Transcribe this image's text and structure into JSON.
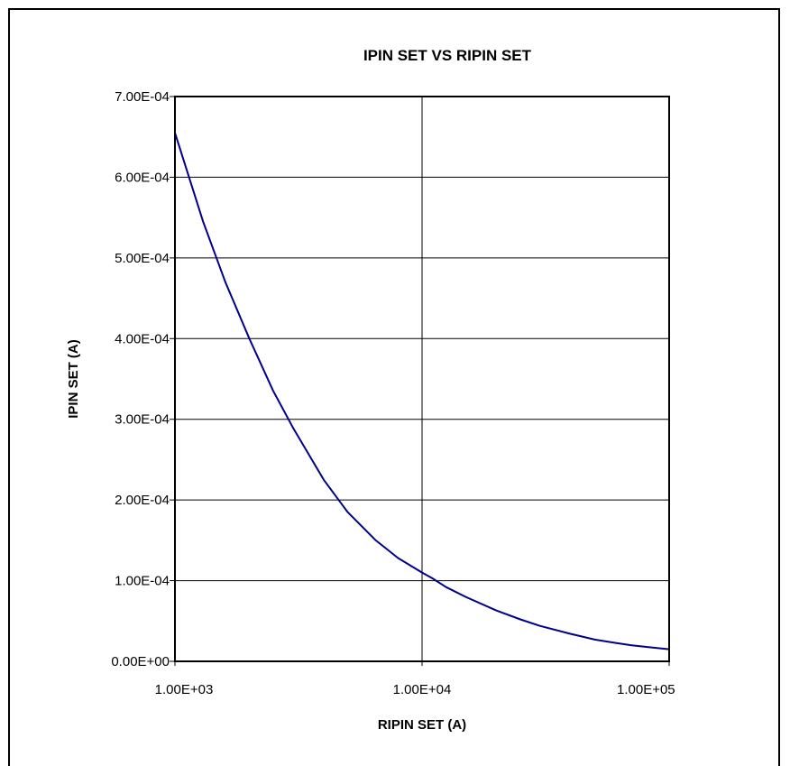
{
  "chart_data": {
    "type": "line",
    "title": "IPIN SET VS RIPIN SET",
    "xlabel": "RIPIN SET (A)",
    "ylabel": "IPIN SET (A)",
    "x_scale": "log",
    "xlim": [
      1000,
      100000
    ],
    "ylim": [
      0,
      0.0007
    ],
    "x_ticks": [
      1000,
      10000,
      100000
    ],
    "x_tick_labels": [
      "1.00E+03",
      "1.00E+04",
      "1.00E+05"
    ],
    "y_ticks": [
      0,
      0.0001,
      0.0002,
      0.0003,
      0.0004,
      0.0005,
      0.0006,
      0.0007
    ],
    "y_tick_labels": [
      "0.00E+00",
      "1.00E-04",
      "2.00E-04",
      "3.00E-04",
      "4.00E-04",
      "5.00E-04",
      "6.00E-04",
      "7.00E-04"
    ],
    "grid": true,
    "series_color": "#00008b",
    "series": [
      {
        "x": [
          1000,
          1300,
          1600,
          2000,
          2500,
          3000,
          4000,
          5000,
          6500,
          8000,
          10000,
          11000,
          12500,
          15000,
          20000,
          25000,
          30000,
          40000,
          50000,
          60000,
          70000,
          80000,
          100000
        ],
        "values": [
          0.000655,
          0.000545,
          0.00047,
          0.0004,
          0.000335,
          0.00029,
          0.000225,
          0.000185,
          0.00015,
          0.000128,
          0.00011,
          0.000103,
          9.2e-05,
          8e-05,
          6.3e-05,
          5.2e-05,
          4.4e-05,
          3.4e-05,
          2.7e-05,
          2.3e-05,
          2e-05,
          1.8e-05,
          1.5e-05
        ]
      }
    ]
  }
}
